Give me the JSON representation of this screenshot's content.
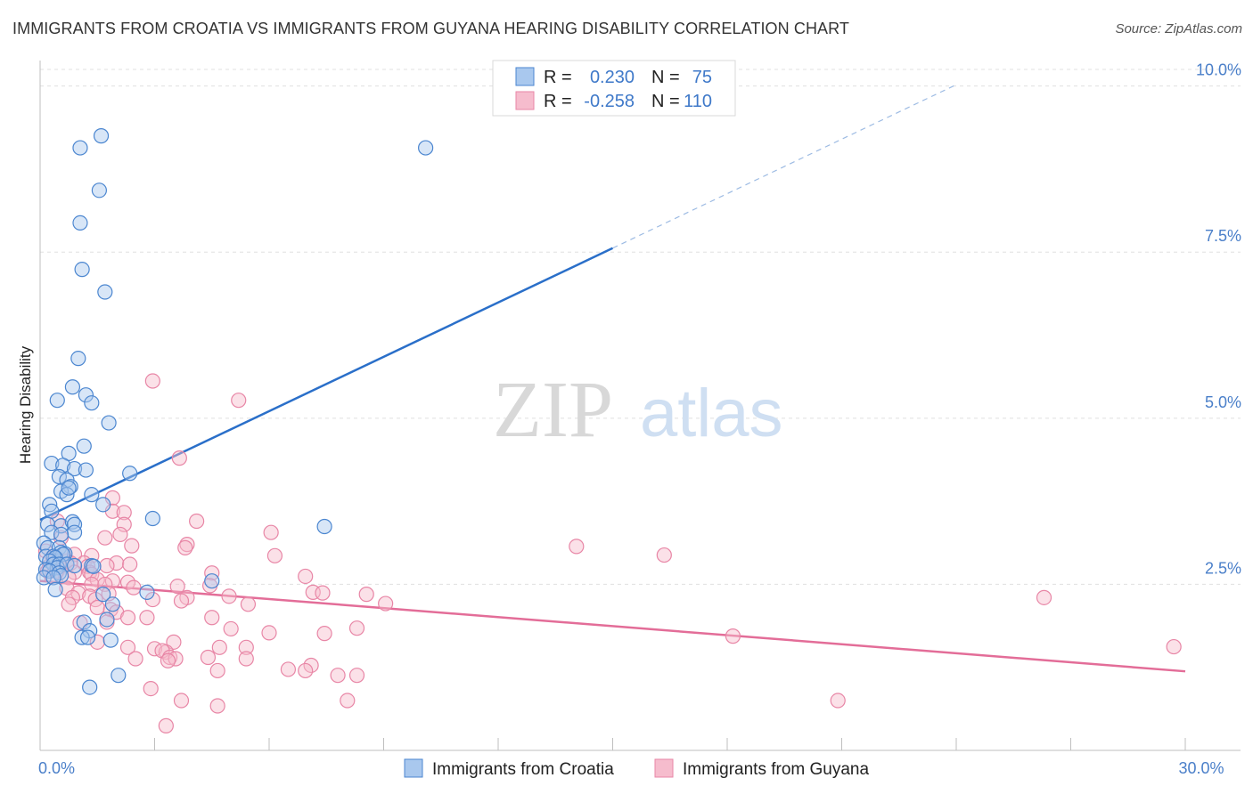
{
  "title": "IMMIGRANTS FROM CROATIA VS IMMIGRANTS FROM GUYANA HEARING DISABILITY CORRELATION CHART",
  "source": "Source: ZipAtlas.com",
  "watermark": {
    "zip": "ZIP",
    "atlas": "atlas"
  },
  "colors": {
    "croatia_fill": "#a9c8ee",
    "croatia_stroke": "#4b86d0",
    "croatia_line": "#2a6fc9",
    "guyana_fill": "#f6bccd",
    "guyana_stroke": "#e886a6",
    "guyana_line": "#e36d98",
    "tick_label": "#4a7fc9",
    "grid": "#e0e0e0"
  },
  "legend": {
    "rows": [
      {
        "r_label": "R =",
        "r_value": "0.230",
        "n_label": "N =",
        "n_value": "75"
      },
      {
        "r_label": "R =",
        "r_value": "-0.258",
        "n_label": "N =",
        "n_value": "110"
      }
    ]
  },
  "chart_data": {
    "type": "scatter",
    "title": "IMMIGRANTS FROM CROATIA VS IMMIGRANTS FROM GUYANA HEARING DISABILITY CORRELATION CHART",
    "xlabel": "",
    "ylabel": "Hearing Disability",
    "xlim": [
      0,
      30
    ],
    "ylim": [
      0,
      10.25
    ],
    "x_tick_labels": [
      {
        "value": 0,
        "label": "0.0%"
      },
      {
        "value": 30,
        "label": "30.0%"
      }
    ],
    "y_tick_labels": [
      {
        "value": 2.5,
        "label": "2.5%"
      },
      {
        "value": 5.0,
        "label": "5.0%"
      },
      {
        "value": 7.5,
        "label": "7.5%"
      },
      {
        "value": 10.0,
        "label": "10.0%"
      }
    ],
    "x_minor_ticks": [
      0,
      3,
      6,
      9,
      12,
      15,
      18,
      21,
      24,
      27,
      30
    ],
    "grid": true,
    "legend_position": "top-center",
    "series": [
      {
        "name": "Immigrants from Croatia",
        "r": 0.23,
        "n": 75,
        "trend": {
          "x0": 0,
          "y0": 3.47,
          "x1": 15.0,
          "y1": 7.56,
          "dash_x1": 24.0,
          "dash_y1": 10.02
        },
        "points": [
          [
            1.6,
            9.25
          ],
          [
            1.05,
            9.07
          ],
          [
            10.1,
            9.07
          ],
          [
            1.55,
            8.43
          ],
          [
            1.05,
            7.94
          ],
          [
            1.1,
            7.24
          ],
          [
            1.7,
            6.9
          ],
          [
            1.0,
            5.9
          ],
          [
            0.85,
            5.47
          ],
          [
            1.2,
            5.35
          ],
          [
            0.45,
            5.27
          ],
          [
            1.35,
            5.23
          ],
          [
            1.8,
            4.93
          ],
          [
            1.15,
            4.58
          ],
          [
            0.75,
            4.47
          ],
          [
            0.3,
            4.32
          ],
          [
            0.6,
            4.29
          ],
          [
            0.9,
            4.24
          ],
          [
            1.2,
            4.22
          ],
          [
            2.35,
            4.17
          ],
          [
            0.5,
            4.12
          ],
          [
            0.7,
            4.07
          ],
          [
            0.8,
            3.97
          ],
          [
            0.55,
            3.9
          ],
          [
            0.7,
            3.85
          ],
          [
            0.75,
            3.95
          ],
          [
            1.35,
            3.85
          ],
          [
            0.25,
            3.7
          ],
          [
            1.65,
            3.7
          ],
          [
            0.3,
            3.6
          ],
          [
            0.2,
            3.4
          ],
          [
            0.55,
            3.38
          ],
          [
            0.85,
            3.44
          ],
          [
            0.9,
            3.4
          ],
          [
            2.95,
            3.49
          ],
          [
            7.45,
            3.37
          ],
          [
            0.3,
            3.28
          ],
          [
            0.9,
            3.28
          ],
          [
            0.55,
            3.25
          ],
          [
            0.1,
            3.12
          ],
          [
            0.2,
            3.05
          ],
          [
            0.5,
            3.05
          ],
          [
            0.55,
            2.98
          ],
          [
            0.65,
            2.96
          ],
          [
            0.6,
            2.95
          ],
          [
            0.15,
            2.92
          ],
          [
            0.35,
            2.92
          ],
          [
            0.4,
            2.9
          ],
          [
            0.25,
            2.85
          ],
          [
            0.35,
            2.8
          ],
          [
            0.5,
            2.8
          ],
          [
            0.45,
            2.75
          ],
          [
            0.7,
            2.8
          ],
          [
            0.9,
            2.78
          ],
          [
            1.35,
            2.78
          ],
          [
            1.4,
            2.77
          ],
          [
            0.15,
            2.72
          ],
          [
            0.25,
            2.7
          ],
          [
            0.5,
            2.67
          ],
          [
            0.55,
            2.63
          ],
          [
            0.1,
            2.6
          ],
          [
            0.35,
            2.6
          ],
          [
            4.5,
            2.55
          ],
          [
            0.4,
            2.42
          ],
          [
            1.65,
            2.35
          ],
          [
            2.8,
            2.38
          ],
          [
            1.9,
            2.2
          ],
          [
            1.15,
            1.93
          ],
          [
            1.75,
            1.97
          ],
          [
            1.3,
            1.8
          ],
          [
            1.1,
            1.7
          ],
          [
            1.25,
            1.7
          ],
          [
            1.85,
            1.66
          ],
          [
            1.3,
            0.95
          ],
          [
            2.05,
            1.13
          ]
        ]
      },
      {
        "name": "Immigrants from Guyana",
        "r": -0.258,
        "n": 110,
        "trend": {
          "x0": 0,
          "y0": 2.55,
          "x1": 30.0,
          "y1": 1.19
        },
        "points": [
          [
            2.95,
            5.56
          ],
          [
            5.2,
            5.27
          ],
          [
            3.65,
            4.4
          ],
          [
            1.9,
            3.8
          ],
          [
            1.9,
            3.6
          ],
          [
            2.2,
            3.58
          ],
          [
            0.45,
            3.45
          ],
          [
            4.1,
            3.45
          ],
          [
            2.2,
            3.4
          ],
          [
            6.05,
            3.28
          ],
          [
            2.1,
            3.25
          ],
          [
            0.55,
            3.2
          ],
          [
            1.7,
            3.2
          ],
          [
            3.85,
            3.1
          ],
          [
            2.4,
            3.08
          ],
          [
            3.8,
            3.05
          ],
          [
            14.05,
            3.07
          ],
          [
            0.15,
            3.0
          ],
          [
            0.6,
            2.95
          ],
          [
            0.9,
            2.95
          ],
          [
            0.35,
            2.9
          ],
          [
            1.35,
            2.93
          ],
          [
            6.15,
            2.93
          ],
          [
            16.35,
            2.94
          ],
          [
            0.7,
            2.85
          ],
          [
            0.8,
            2.82
          ],
          [
            1.15,
            2.82
          ],
          [
            2.0,
            2.82
          ],
          [
            0.25,
            2.78
          ],
          [
            0.5,
            2.78
          ],
          [
            1.25,
            2.77
          ],
          [
            1.75,
            2.78
          ],
          [
            2.35,
            2.8
          ],
          [
            0.2,
            2.7
          ],
          [
            0.45,
            2.7
          ],
          [
            0.9,
            2.68
          ],
          [
            1.3,
            2.68
          ],
          [
            1.35,
            2.65
          ],
          [
            4.5,
            2.67
          ],
          [
            0.3,
            2.62
          ],
          [
            0.75,
            2.6
          ],
          [
            6.95,
            2.62
          ],
          [
            1.5,
            2.57
          ],
          [
            1.9,
            2.55
          ],
          [
            2.3,
            2.53
          ],
          [
            1.35,
            2.5
          ],
          [
            1.7,
            2.5
          ],
          [
            3.6,
            2.47
          ],
          [
            4.45,
            2.48
          ],
          [
            0.7,
            2.44
          ],
          [
            2.45,
            2.45
          ],
          [
            7.15,
            2.38
          ],
          [
            7.4,
            2.37
          ],
          [
            1.0,
            2.37
          ],
          [
            1.8,
            2.36
          ],
          [
            8.55,
            2.35
          ],
          [
            1.3,
            2.32
          ],
          [
            3.85,
            2.3
          ],
          [
            4.95,
            2.32
          ],
          [
            0.85,
            2.3
          ],
          [
            26.3,
            2.3
          ],
          [
            1.45,
            2.27
          ],
          [
            2.95,
            2.27
          ],
          [
            3.7,
            2.25
          ],
          [
            5.45,
            2.2
          ],
          [
            9.05,
            2.21
          ],
          [
            0.75,
            2.2
          ],
          [
            1.5,
            2.15
          ],
          [
            1.85,
            2.12
          ],
          [
            2.0,
            2.08
          ],
          [
            2.8,
            2.0
          ],
          [
            4.5,
            2.0
          ],
          [
            2.3,
            2.0
          ],
          [
            1.05,
            1.92
          ],
          [
            1.75,
            1.93
          ],
          [
            5.0,
            1.83
          ],
          [
            8.3,
            1.84
          ],
          [
            7.45,
            1.76
          ],
          [
            6.0,
            1.77
          ],
          [
            18.15,
            1.72
          ],
          [
            1.5,
            1.63
          ],
          [
            3.5,
            1.63
          ],
          [
            2.3,
            1.55
          ],
          [
            4.7,
            1.55
          ],
          [
            3.0,
            1.53
          ],
          [
            5.4,
            1.55
          ],
          [
            3.3,
            1.48
          ],
          [
            3.2,
            1.5
          ],
          [
            29.7,
            1.56
          ],
          [
            2.5,
            1.38
          ],
          [
            3.4,
            1.4
          ],
          [
            3.55,
            1.38
          ],
          [
            5.4,
            1.38
          ],
          [
            4.4,
            1.4
          ],
          [
            3.35,
            1.35
          ],
          [
            6.5,
            1.22
          ],
          [
            7.1,
            1.28
          ],
          [
            6.95,
            1.2
          ],
          [
            4.65,
            1.2
          ],
          [
            7.8,
            1.13
          ],
          [
            8.3,
            1.13
          ],
          [
            2.9,
            0.93
          ],
          [
            3.7,
            0.75
          ],
          [
            8.05,
            0.75
          ],
          [
            4.65,
            0.67
          ],
          [
            20.9,
            0.75
          ],
          [
            3.3,
            0.37
          ]
        ]
      }
    ]
  }
}
